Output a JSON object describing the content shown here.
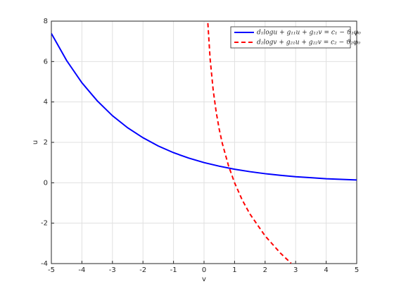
{
  "chart_data": {
    "type": "line",
    "x_label": "v",
    "y_label": "u",
    "xlim": [
      -5,
      5
    ],
    "ylim": [
      -4,
      8
    ],
    "xticks": [
      -5,
      -4,
      -3,
      -2,
      -1,
      0,
      1,
      2,
      3,
      4,
      5
    ],
    "yticks": [
      -4,
      -2,
      0,
      2,
      4,
      6,
      8
    ],
    "grid": true,
    "legend_position": "top-right",
    "series": [
      {
        "name": "d₁logu + g₁₁u + g₁₂v = c₁ − ϑ₁φ₀",
        "color": "#0000ff",
        "style": "solid",
        "x": [
          -5,
          -4.5,
          -4,
          -3.5,
          -3,
          -2.5,
          -2,
          -1.5,
          -1,
          -0.5,
          0,
          0.5,
          1,
          1.5,
          2,
          2.5,
          3,
          3.5,
          4,
          4.5,
          5
        ],
        "values": [
          7.39,
          6.05,
          4.95,
          4.06,
          3.32,
          2.72,
          2.23,
          1.82,
          1.49,
          1.22,
          1,
          0.82,
          0.67,
          0.55,
          0.45,
          0.37,
          0.3,
          0.25,
          0.2,
          0.17,
          0.14
        ]
      },
      {
        "name": "d₂logv + g₂₁u + g₂₂v = c₂ − ϑ₂φ₀",
        "color": "#ff0000",
        "style": "dashed",
        "x": [
          0.125,
          0.2,
          0.3,
          0.4,
          0.5,
          0.6,
          0.8,
          1,
          1.25,
          1.5,
          2,
          2.5,
          2.85
        ],
        "values": [
          7.9,
          6.12,
          4.58,
          3.48,
          2.63,
          1.94,
          0.85,
          0,
          -0.85,
          -1.54,
          -2.63,
          -3.48,
          -3.98
        ]
      }
    ]
  }
}
